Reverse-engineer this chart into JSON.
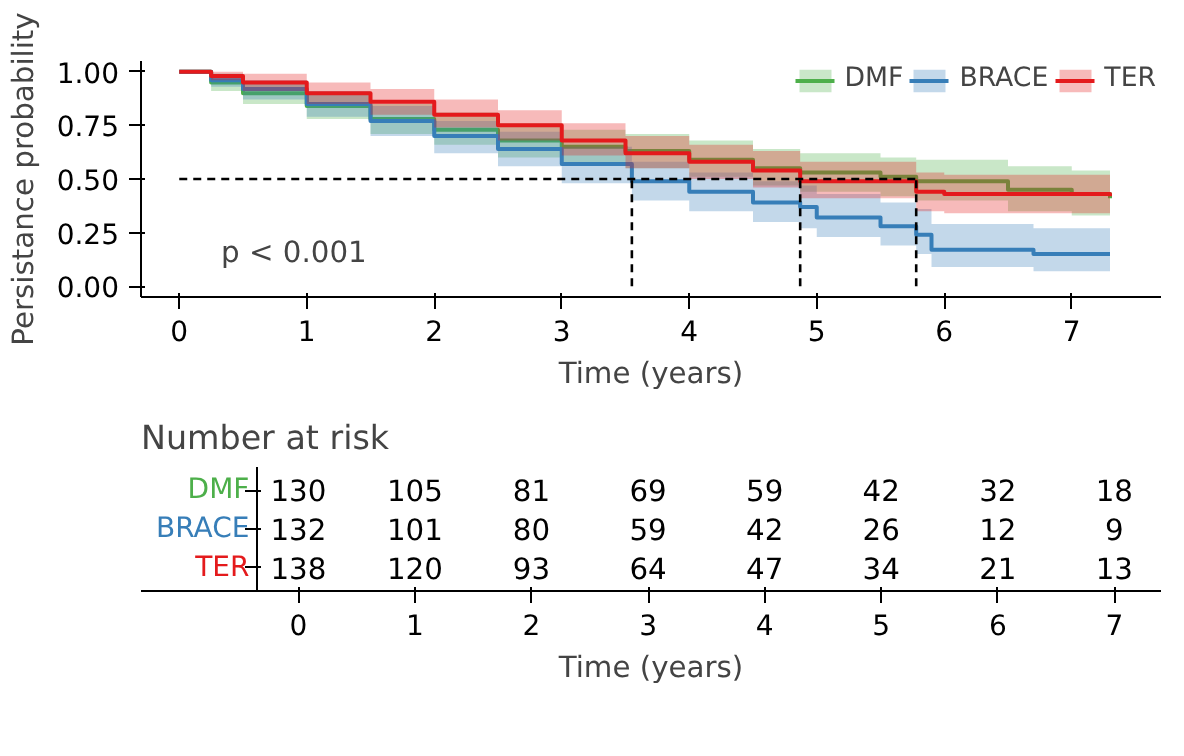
{
  "chart_data": [
    {
      "type": "step",
      "xlabel": "Time (years)",
      "ylabel": "Persistance probability",
      "legend": "top right",
      "grid": false,
      "xlim": [
        -0.3,
        7.7
      ],
      "ylim": [
        -0.05,
        1.05
      ],
      "xticks": [
        0,
        1,
        2,
        3,
        4,
        5,
        6,
        7
      ],
      "yticks": [
        {
          "value": 0,
          "label": "0.00"
        },
        {
          "value": 0.25,
          "label": "0.25"
        },
        {
          "value": 0.5,
          "label": "0.50"
        },
        {
          "value": 0.75,
          "label": "0.75"
        },
        {
          "value": 1,
          "label": "1.00"
        }
      ],
      "annotations": [
        "p < 0.001"
      ],
      "ref_lines": [
        {
          "axis": "y",
          "value": 0.5,
          "line_style": "dashed",
          "color": "#000000"
        },
        {
          "axis": "x",
          "value": 3.55,
          "line_style": "dashed",
          "color": "#000000"
        },
        {
          "axis": "x",
          "value": 4.87,
          "line_style": "dashed",
          "color": "#000000"
        },
        {
          "axis": "x",
          "value": 5.78,
          "line_style": "dashed",
          "color": "#000000"
        }
      ],
      "series": [
        {
          "name": "DMF",
          "color": "#4daf4a",
          "x": [
            0,
            0.25,
            0.5,
            1,
            1.5,
            2,
            2.5,
            3,
            3.5,
            4,
            4.5,
            4.87,
            5.5,
            5.78,
            6.5,
            7,
            7.3
          ],
          "values": [
            1,
            0.95,
            0.9,
            0.84,
            0.78,
            0.73,
            0.68,
            0.65,
            0.63,
            0.59,
            0.55,
            0.53,
            0.51,
            0.49,
            0.45,
            0.43,
            0.41
          ],
          "lower": [
            1,
            0.91,
            0.85,
            0.78,
            0.71,
            0.66,
            0.6,
            0.57,
            0.55,
            0.51,
            0.47,
            0.44,
            0.42,
            0.4,
            0.35,
            0.33,
            0.3
          ],
          "upper": [
            1,
            0.99,
            0.95,
            0.9,
            0.85,
            0.81,
            0.76,
            0.73,
            0.71,
            0.68,
            0.64,
            0.62,
            0.6,
            0.59,
            0.56,
            0.54,
            0.53
          ]
        },
        {
          "name": "BRACE",
          "color": "#377eb8",
          "x": [
            0,
            0.25,
            0.5,
            1,
            1.5,
            2,
            2.5,
            3,
            3.55,
            4,
            4.5,
            4.87,
            5,
            5.5,
            5.78,
            5.9,
            6.5,
            6.7,
            7.3
          ],
          "values": [
            1,
            0.96,
            0.92,
            0.85,
            0.77,
            0.7,
            0.64,
            0.57,
            0.49,
            0.44,
            0.39,
            0.37,
            0.32,
            0.28,
            0.24,
            0.17,
            0.17,
            0.15,
            0.15
          ],
          "lower": [
            1,
            0.93,
            0.87,
            0.79,
            0.7,
            0.62,
            0.56,
            0.48,
            0.4,
            0.35,
            0.3,
            0.27,
            0.23,
            0.19,
            0.15,
            0.09,
            0.09,
            0.07,
            0.07
          ],
          "upper": [
            1,
            0.99,
            0.96,
            0.91,
            0.84,
            0.77,
            0.72,
            0.65,
            0.58,
            0.53,
            0.49,
            0.47,
            0.43,
            0.39,
            0.36,
            0.29,
            0.29,
            0.27,
            0.27
          ]
        },
        {
          "name": "TER",
          "color": "#e41a1c",
          "x": [
            0,
            0.25,
            0.5,
            1,
            1.5,
            2,
            2.5,
            3,
            3.5,
            4,
            4.5,
            4.87,
            5.78,
            6,
            7.3
          ],
          "values": [
            1,
            0.98,
            0.95,
            0.9,
            0.86,
            0.8,
            0.75,
            0.68,
            0.62,
            0.58,
            0.54,
            0.49,
            0.44,
            0.43,
            0.42
          ],
          "lower": [
            1,
            0.96,
            0.91,
            0.85,
            0.8,
            0.74,
            0.68,
            0.61,
            0.55,
            0.5,
            0.46,
            0.41,
            0.35,
            0.34,
            0.32
          ],
          "upper": [
            1,
            1,
            0.99,
            0.95,
            0.92,
            0.87,
            0.82,
            0.76,
            0.7,
            0.66,
            0.63,
            0.58,
            0.53,
            0.52,
            0.52
          ]
        }
      ]
    },
    {
      "type": "heatmap",
      "title": "Number at risk",
      "xlabel": "Time (years)",
      "data_labels": true,
      "categories": [
        "0",
        "1",
        "2",
        "3",
        "4",
        "5",
        "6",
        "7"
      ],
      "y_categories": [
        "DMF",
        "BRACE",
        "TER"
      ],
      "colors": [
        "#4daf4a",
        "#377eb8",
        "#e41a1c"
      ],
      "cells": [
        [
          130,
          105,
          81,
          69,
          59,
          42,
          32,
          18
        ],
        [
          132,
          101,
          80,
          59,
          42,
          26,
          12,
          9
        ],
        [
          138,
          120,
          93,
          64,
          47,
          34,
          21,
          13
        ]
      ]
    }
  ]
}
